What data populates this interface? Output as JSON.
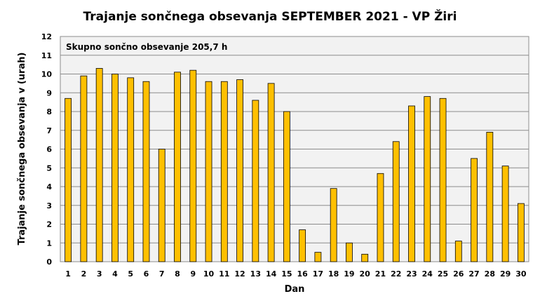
{
  "chart_data": {
    "type": "bar",
    "title": "Trajanje  sončnega obsevanja  SEPTEMBER 2021 - VP Žiri",
    "xlabel": "Dan",
    "ylabel": "Trajanje  sončnega obsevanja  v (urah)",
    "annotation": "Skupno sončno obsevanje 205,7 h",
    "categories": [
      "1",
      "2",
      "3",
      "4",
      "5",
      "6",
      "7",
      "8",
      "9",
      "10",
      "11",
      "12",
      "13",
      "14",
      "15",
      "16",
      "17",
      "18",
      "19",
      "20",
      "21",
      "22",
      "23",
      "24",
      "25",
      "26",
      "27",
      "28",
      "29",
      "30"
    ],
    "values": [
      8.7,
      9.9,
      10.3,
      10.0,
      9.8,
      9.6,
      6.0,
      10.1,
      10.2,
      9.6,
      9.6,
      9.7,
      8.6,
      9.5,
      8.0,
      1.7,
      0.5,
      3.9,
      1.0,
      0.4,
      4.7,
      6.4,
      8.3,
      8.8,
      8.7,
      1.1,
      5.5,
      6.9,
      5.1,
      3.1
    ],
    "ylim": [
      0,
      12
    ],
    "yticks": [
      "0",
      "1",
      "2",
      "3",
      "4",
      "5",
      "6",
      "7",
      "8",
      "9",
      "10",
      "11",
      "12"
    ],
    "grid": true,
    "colors": {
      "bar_fill": "#FFC000",
      "bar_stroke": "#000000",
      "plot_bg": "#F2F2F2",
      "grid": "#8C8C8C"
    }
  }
}
